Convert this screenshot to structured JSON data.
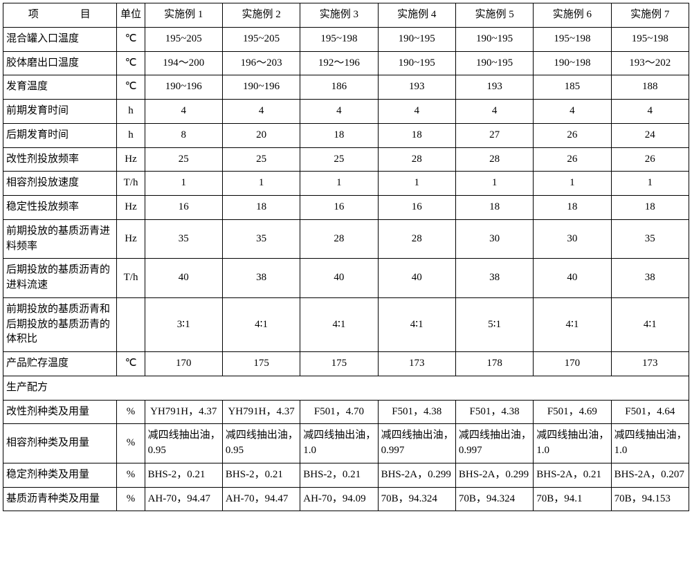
{
  "header": {
    "project": "项　目",
    "unit": "单位",
    "ex1": "实施例 1",
    "ex2": "实施例 2",
    "ex3": "实施例 3",
    "ex4": "实施例 4",
    "ex5": "实施例 5",
    "ex6": "实施例 6",
    "ex7": "实施例 7"
  },
  "rows": {
    "r0": {
      "label": "混合罐入口温度",
      "unit": "℃",
      "v": [
        "195~205",
        "195~205",
        "195~198",
        "190~195",
        "190~195",
        "195~198",
        "195~198"
      ]
    },
    "r1": {
      "label": "胶体磨出口温度",
      "unit": "℃",
      "v": [
        "194～200",
        "196～203",
        "192～196",
        "190~195",
        "190~195",
        "190~198",
        "193～202"
      ]
    },
    "r2": {
      "label": "发育温度",
      "unit": "℃",
      "v": [
        "190~196",
        "190~196",
        "186",
        "193",
        "193",
        "185",
        "188"
      ]
    },
    "r3": {
      "label": "前期发育时间",
      "unit": "h",
      "v": [
        "4",
        "4",
        "4",
        "4",
        "4",
        "4",
        "4"
      ]
    },
    "r4": {
      "label": "后期发育时间",
      "unit": "h",
      "v": [
        "8",
        "20",
        "18",
        "18",
        "27",
        "26",
        "24"
      ]
    },
    "r5": {
      "label": "改性剂投放频率",
      "unit": "Hz",
      "v": [
        "25",
        "25",
        "25",
        "28",
        "28",
        "26",
        "26"
      ]
    },
    "r6": {
      "label": "相容剂投放速度",
      "unit": "T/h",
      "v": [
        "1",
        "1",
        "1",
        "1",
        "1",
        "1",
        "1"
      ]
    },
    "r7": {
      "label": "稳定性投放频率",
      "unit": "Hz",
      "v": [
        "16",
        "18",
        "16",
        "16",
        "18",
        "18",
        "18"
      ]
    },
    "r8": {
      "label": "前期投放的基质沥青进料频率",
      "unit": "Hz",
      "v": [
        "35",
        "35",
        "28",
        "28",
        "30",
        "30",
        "35"
      ]
    },
    "r9": {
      "label": "后期投放的基质沥青的进料流速",
      "unit": "T/h",
      "v": [
        "40",
        "38",
        "40",
        "40",
        "38",
        "40",
        "38"
      ]
    },
    "r10": {
      "label": "前期投放的基质沥青和后期投放的基质沥青的体积比",
      "unit": "",
      "v": [
        "3∶1",
        "4∶1",
        "4∶1",
        "4∶1",
        "5∶1",
        "4∶1",
        "4∶1"
      ]
    },
    "r11": {
      "label": "产品贮存温度",
      "unit": "℃",
      "v": [
        "170",
        "175",
        "175",
        "173",
        "178",
        "170",
        "173"
      ]
    },
    "section": "生产配方",
    "r12": {
      "label": "改性剂种类及用量",
      "unit": "%",
      "v": [
        "YH791H，4.37",
        "YH791H，4.37",
        "F501，4.70",
        "F501，4.38",
        "F501，4.38",
        "F501，4.69",
        "F501，4.64"
      ]
    },
    "r13": {
      "label": "相容剂种类及用量",
      "unit": "%",
      "v": [
        "减四线抽出油，0.95",
        "减四线抽出油，0.95",
        "减四线抽出油，1.0",
        "减四线抽出油，0.997",
        "减四线抽出油，0.997",
        "减四线抽出油，1.0",
        "减四线抽出油，1.0"
      ]
    },
    "r14": {
      "label": "稳定剂种类及用量",
      "unit": "%",
      "v": [
        "BHS-2，0.21",
        "BHS-2，0.21",
        "BHS-2，0.21",
        "BHS-2A，0.299",
        "BHS-2A，0.299",
        "BHS-2A，0.21",
        "BHS-2A，0.207"
      ]
    },
    "r15": {
      "label": "基质沥青种类及用量",
      "unit": "%",
      "v": [
        "AH-70，94.47",
        "AH-70，94.47",
        "AH-70，94.09",
        "70B，94.324",
        "70B，94.324",
        "70B，94.1",
        "70B，94.153"
      ]
    }
  }
}
